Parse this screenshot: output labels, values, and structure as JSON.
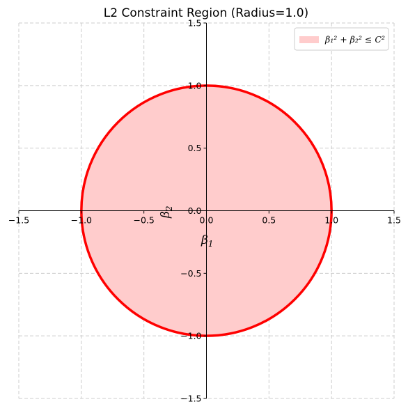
{
  "chart_data": {
    "type": "area",
    "title": "L2 Constraint Region (Radius=1.0)",
    "xlabel": {
      "base": "β",
      "sub": "1"
    },
    "ylabel": {
      "base": "β",
      "sub": "2"
    },
    "xlim": [
      -1.5,
      1.5
    ],
    "ylim": [
      -1.5,
      1.5
    ],
    "x_ticks": [
      -1.5,
      -1.0,
      -0.5,
      0.0,
      0.5,
      1.0,
      1.5
    ],
    "y_ticks": [
      -1.5,
      -1.0,
      -0.5,
      0.0,
      0.5,
      1.0,
      1.5
    ],
    "x_tick_labels": [
      "−1.5",
      "−1.0",
      "−0.5",
      "0.0",
      "0.5",
      "1.0",
      "1.5"
    ],
    "y_tick_labels": [
      "−1.5",
      "−1.0",
      "−0.5",
      "0.0",
      "0.5",
      "1.0",
      "1.5"
    ],
    "grid": true,
    "grid_style": "dashed",
    "legend_position": "top-right",
    "series": [
      {
        "name": "β₁² + β₂² ≤ C²",
        "shape": "circle",
        "center": [
          0,
          0
        ],
        "radius": 1.0,
        "fill_color": "#ffcccc",
        "edge_color": "#ff0000"
      }
    ]
  }
}
